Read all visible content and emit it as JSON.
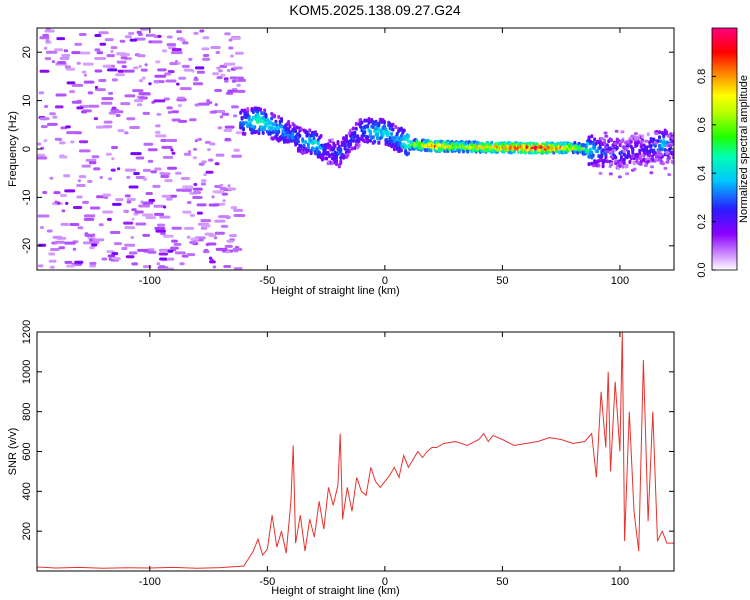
{
  "title": "KOM5.2025.138.09.27.G24",
  "chart_data": [
    {
      "type": "heatmap",
      "xlabel": "Height of straight line (km)",
      "ylabel": "Frequency (Hz)",
      "xlim": [
        -148,
        123
      ],
      "ylim": [
        -25,
        25
      ],
      "xticks": [
        -100,
        -50,
        0,
        50,
        100
      ],
      "yticks": [
        -20,
        -10,
        0,
        10,
        20
      ],
      "colorbar": {
        "label": "Normalized spectral amplitude",
        "range": [
          0,
          1
        ],
        "ticks": [
          "0.0",
          "0.2",
          "0.4",
          "0.6",
          "0.8"
        ]
      },
      "ridge": {
        "x": [
          -62,
          -55,
          -45,
          -37,
          -30,
          -25,
          -20,
          -15,
          -10,
          -5,
          0,
          5,
          10,
          20,
          30,
          40,
          50,
          60,
          70,
          80,
          90,
          100,
          110,
          118,
          123
        ],
        "frequency": [
          5.5,
          6,
          4,
          2,
          1,
          -0.5,
          -1,
          1.5,
          4,
          3.5,
          3.5,
          2,
          1,
          0.6,
          0.5,
          0.4,
          0.3,
          0.2,
          0.2,
          0.3,
          -0.5,
          -1,
          0,
          1,
          0
        ],
        "amplitude": [
          0.3,
          0.5,
          0.35,
          0.3,
          0.45,
          0.2,
          0.3,
          0.25,
          0.3,
          0.45,
          0.4,
          0.35,
          0.6,
          0.9,
          0.7,
          0.8,
          0.85,
          1.0,
          0.9,
          0.7,
          0.3,
          0.25,
          0.2,
          0.4,
          0.2
        ]
      },
      "noise_region_x": [
        -148,
        -63
      ]
    },
    {
      "type": "line",
      "xlabel": "Height of straight line (km)",
      "ylabel": "SNR (v/v)",
      "xlim": [
        -148,
        123
      ],
      "ylim": [
        0,
        1200
      ],
      "xticks": [
        -100,
        -50,
        0,
        50,
        100
      ],
      "yticks": [
        200,
        400,
        600,
        800,
        1000,
        1200
      ],
      "series": [
        {
          "color": "#e8322d",
          "x": [
            -148,
            -140,
            -130,
            -120,
            -110,
            -100,
            -90,
            -80,
            -70,
            -60,
            -56,
            -54,
            -52,
            -50,
            -48,
            -46,
            -44,
            -42,
            -40,
            -39,
            -38,
            -36,
            -34,
            -32,
            -30,
            -28,
            -26,
            -24,
            -22,
            -20,
            -19,
            -18,
            -16,
            -14,
            -12,
            -10,
            -8,
            -6,
            -4,
            -2,
            0,
            2,
            4,
            6,
            8,
            10,
            12,
            14,
            16,
            18,
            20,
            22,
            25,
            30,
            35,
            40,
            42,
            44,
            46,
            50,
            55,
            60,
            65,
            70,
            75,
            80,
            85,
            88,
            90,
            92,
            94,
            95,
            96,
            98,
            100,
            101,
            102,
            104,
            106,
            108,
            110,
            112,
            114,
            116,
            118,
            120,
            123
          ],
          "y": [
            20,
            15,
            18,
            14,
            16,
            15,
            18,
            14,
            17,
            25,
            100,
            160,
            80,
            110,
            280,
            120,
            200,
            90,
            350,
            630,
            140,
            280,
            100,
            260,
            170,
            350,
            210,
            420,
            330,
            430,
            690,
            260,
            420,
            300,
            470,
            400,
            380,
            520,
            450,
            420,
            450,
            480,
            520,
            470,
            580,
            520,
            560,
            600,
            570,
            600,
            620,
            620,
            640,
            650,
            630,
            660,
            690,
            650,
            680,
            660,
            630,
            640,
            650,
            670,
            660,
            640,
            650,
            690,
            470,
            900,
            620,
            1000,
            500,
            950,
            600,
            1200,
            150,
            800,
            300,
            100,
            1060,
            250,
            800,
            150,
            200,
            140,
            140
          ]
        }
      ]
    }
  ]
}
